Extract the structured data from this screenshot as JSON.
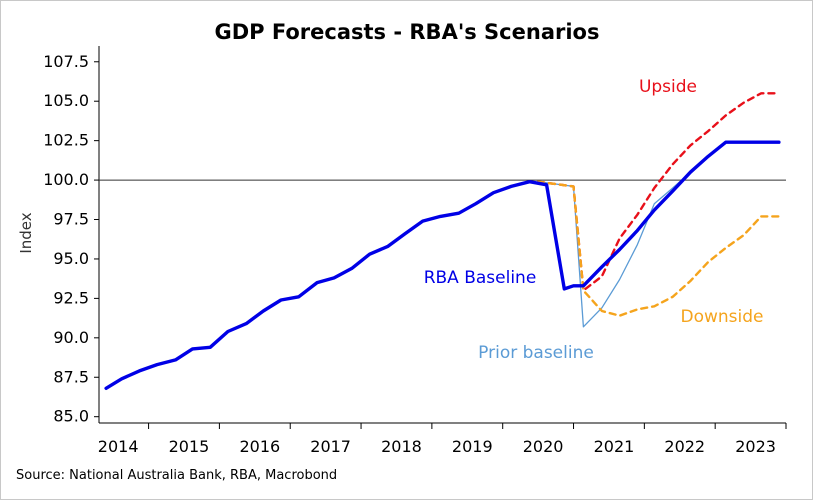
{
  "chart_data": {
    "type": "line",
    "title": "GDP Forecasts - RBA's Scenarios",
    "ylabel": "Index",
    "xlabel": "",
    "ylim": [
      84.6,
      108.5
    ],
    "xlim": [
      2013.3,
      2023.0
    ],
    "yticks": [
      "85.0",
      "87.5",
      "90.0",
      "92.5",
      "95.0",
      "97.5",
      "100.0",
      "102.5",
      "105.0",
      "107.5"
    ],
    "xticks": [
      "2014",
      "2015",
      "2016",
      "2017",
      "2018",
      "2019",
      "2020",
      "2021",
      "2022",
      "2023"
    ],
    "reference_line": 100.0,
    "grid": false,
    "source": "Source: National Australia Bank, RBA, Macrobond",
    "colors": {
      "baseline": "#0000e6",
      "prior": "#5b9bd5",
      "upside": "#e8101a",
      "downside": "#f5a41d",
      "reference": "#333333"
    },
    "series": [
      {
        "key": "prior",
        "x": [
          2019.5,
          2020.0,
          2020.14,
          2020.4,
          2020.65,
          2020.9,
          2021.14,
          2021.4,
          2021.65,
          2021.9
        ],
        "values": [
          99.9,
          99.6,
          90.7,
          91.9,
          93.7,
          95.9,
          98.5,
          99.5,
          100.5,
          101.5
        ]
      },
      {
        "key": "upside",
        "x": [
          2019.5,
          2020.0,
          2020.14,
          2020.4,
          2020.65,
          2020.9,
          2021.14,
          2021.4,
          2021.65,
          2021.9,
          2022.15,
          2022.4,
          2022.65,
          2022.9
        ],
        "values": [
          99.9,
          99.6,
          93.0,
          93.9,
          96.3,
          97.8,
          99.5,
          101.0,
          102.2,
          103.1,
          104.1,
          104.9,
          105.5,
          105.5
        ]
      },
      {
        "key": "downside",
        "x": [
          2019.5,
          2020.0,
          2020.14,
          2020.4,
          2020.65,
          2020.9,
          2021.14,
          2021.4,
          2021.65,
          2021.9,
          2022.15,
          2022.4,
          2022.65,
          2022.9
        ],
        "values": [
          99.9,
          99.6,
          93.0,
          91.7,
          91.4,
          91.8,
          92.0,
          92.6,
          93.6,
          94.8,
          95.7,
          96.5,
          97.7,
          97.7
        ]
      },
      {
        "key": "baseline",
        "x": [
          2013.4,
          2013.62,
          2013.87,
          2014.12,
          2014.38,
          2014.62,
          2014.87,
          2015.12,
          2015.38,
          2015.62,
          2015.87,
          2016.12,
          2016.38,
          2016.62,
          2016.87,
          2017.12,
          2017.38,
          2017.62,
          2017.87,
          2018.12,
          2018.38,
          2018.62,
          2018.87,
          2019.12,
          2019.38,
          2019.62,
          2019.87,
          2020.0,
          2020.14,
          2020.4,
          2020.65,
          2020.9,
          2021.14,
          2021.4,
          2021.65,
          2021.9,
          2022.15,
          2022.4,
          2022.65,
          2022.9
        ],
        "values": [
          86.8,
          87.4,
          87.9,
          88.3,
          88.6,
          89.3,
          89.4,
          90.4,
          90.9,
          91.7,
          92.4,
          92.6,
          93.5,
          93.8,
          94.4,
          95.3,
          95.8,
          96.6,
          97.4,
          97.7,
          97.9,
          98.5,
          99.2,
          99.6,
          99.9,
          99.7,
          93.1,
          93.3,
          93.3,
          94.5,
          95.6,
          96.8,
          98.1,
          99.3,
          100.5,
          101.5,
          102.4,
          102.4,
          102.4,
          102.4
        ]
      }
    ],
    "annotations": [
      {
        "key": "upside",
        "text": "Upside"
      },
      {
        "key": "baseline",
        "text": "RBA Baseline"
      },
      {
        "key": "downside",
        "text": "Downside"
      },
      {
        "key": "prior",
        "text": "Prior baseline"
      }
    ]
  }
}
